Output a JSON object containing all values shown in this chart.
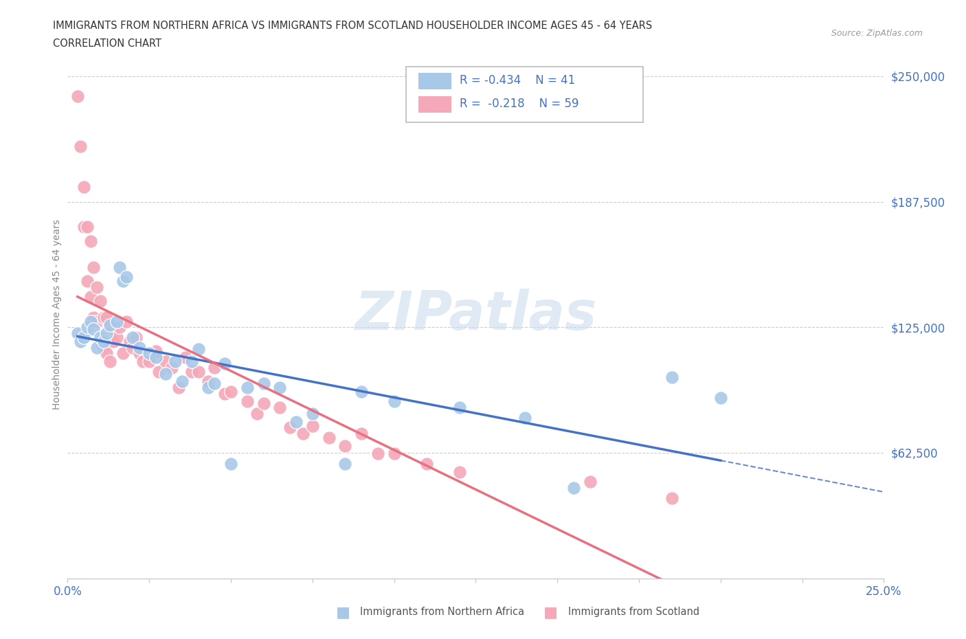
{
  "title_line1": "IMMIGRANTS FROM NORTHERN AFRICA VS IMMIGRANTS FROM SCOTLAND HOUSEHOLDER INCOME AGES 45 - 64 YEARS",
  "title_line2": "CORRELATION CHART",
  "source_text": "Source: ZipAtlas.com",
  "ylabel": "Householder Income Ages 45 - 64 years",
  "xlim": [
    0,
    0.25
  ],
  "ylim": [
    0,
    262500
  ],
  "xticks": [
    0.0,
    0.025,
    0.05,
    0.075,
    0.1,
    0.125,
    0.15,
    0.175,
    0.2,
    0.225,
    0.25
  ],
  "ytick_values": [
    0,
    62500,
    125000,
    187500,
    250000
  ],
  "legend_blue_label": "Immigrants from Northern Africa",
  "legend_pink_label": "Immigrants from Scotland",
  "R_blue": -0.434,
  "N_blue": 41,
  "R_pink": -0.218,
  "N_pink": 59,
  "color_blue": "#A8C8E8",
  "color_pink": "#F4A8B8",
  "color_trendline_blue": "#4472C4",
  "color_trendline_pink": "#E87080",
  "blue_x": [
    0.003,
    0.004,
    0.005,
    0.006,
    0.007,
    0.008,
    0.009,
    0.01,
    0.011,
    0.012,
    0.013,
    0.015,
    0.016,
    0.017,
    0.018,
    0.02,
    0.022,
    0.025,
    0.027,
    0.03,
    0.033,
    0.035,
    0.038,
    0.04,
    0.043,
    0.045,
    0.048,
    0.05,
    0.055,
    0.06,
    0.065,
    0.07,
    0.075,
    0.085,
    0.09,
    0.1,
    0.12,
    0.14,
    0.155,
    0.185,
    0.2
  ],
  "blue_y": [
    122000,
    118000,
    120000,
    125000,
    128000,
    124000,
    115000,
    120000,
    118000,
    122000,
    126000,
    128000,
    155000,
    148000,
    150000,
    120000,
    115000,
    112000,
    110000,
    102000,
    108000,
    98000,
    108000,
    114000,
    95000,
    97000,
    107000,
    57000,
    95000,
    97000,
    95000,
    78000,
    82000,
    57000,
    93000,
    88000,
    85000,
    80000,
    45000,
    100000,
    90000
  ],
  "pink_x": [
    0.003,
    0.004,
    0.005,
    0.005,
    0.006,
    0.006,
    0.007,
    0.007,
    0.008,
    0.008,
    0.009,
    0.009,
    0.01,
    0.01,
    0.011,
    0.011,
    0.012,
    0.012,
    0.013,
    0.013,
    0.014,
    0.015,
    0.016,
    0.017,
    0.018,
    0.019,
    0.02,
    0.021,
    0.022,
    0.023,
    0.025,
    0.027,
    0.028,
    0.03,
    0.032,
    0.034,
    0.036,
    0.038,
    0.04,
    0.043,
    0.045,
    0.048,
    0.05,
    0.055,
    0.058,
    0.06,
    0.065,
    0.068,
    0.072,
    0.075,
    0.08,
    0.085,
    0.09,
    0.095,
    0.1,
    0.11,
    0.12,
    0.16,
    0.185
  ],
  "pink_y": [
    240000,
    215000,
    195000,
    175000,
    175000,
    148000,
    168000,
    140000,
    155000,
    130000,
    145000,
    128000,
    138000,
    118000,
    130000,
    115000,
    130000,
    112000,
    125000,
    108000,
    118000,
    120000,
    125000,
    112000,
    128000,
    118000,
    115000,
    120000,
    112000,
    108000,
    108000,
    113000,
    103000,
    108000,
    105000,
    95000,
    110000,
    103000,
    103000,
    98000,
    105000,
    92000,
    93000,
    88000,
    82000,
    87000,
    85000,
    75000,
    72000,
    76000,
    70000,
    66000,
    72000,
    62000,
    62000,
    57000,
    53000,
    48000,
    40000
  ]
}
